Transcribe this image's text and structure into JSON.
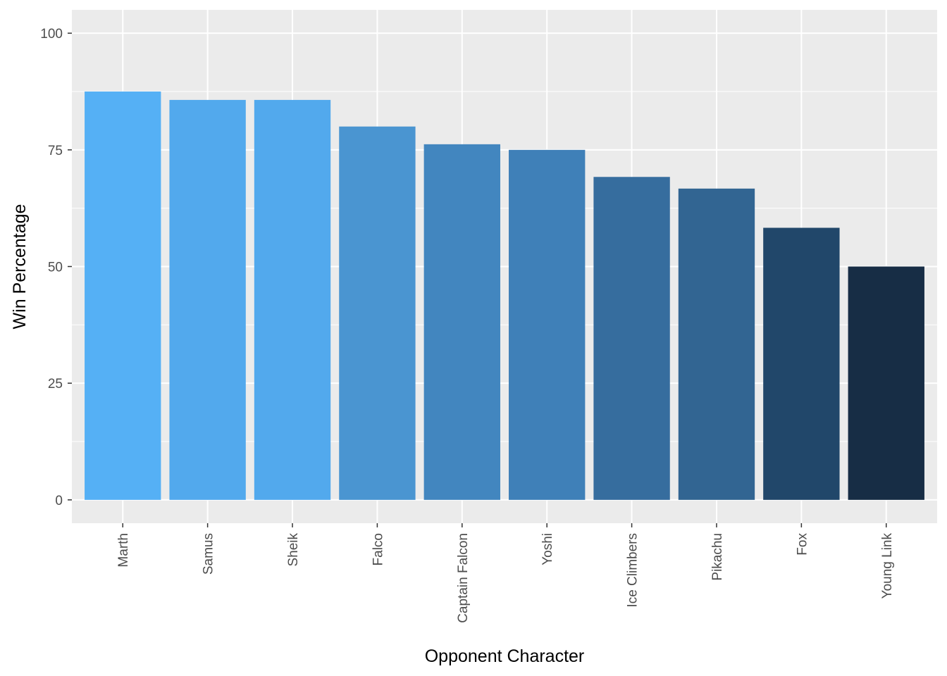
{
  "chart_data": {
    "type": "bar",
    "xlabel": "Opponent Character",
    "ylabel": "Win Percentage",
    "categories": [
      "Marth",
      "Samus",
      "Sheik",
      "Falco",
      "Captain Falcon",
      "Yoshi",
      "Ice Climbers",
      "Pikachu",
      "Fox",
      "Young Link"
    ],
    "values": [
      87.5,
      85.7,
      85.7,
      80.0,
      76.2,
      75.0,
      69.2,
      66.7,
      58.3,
      50.0
    ],
    "ylim": [
      -5,
      105
    ],
    "yticks": [
      0,
      25,
      50,
      75,
      100
    ],
    "ytick_labels": [
      "0",
      "25",
      "50",
      "75",
      "100"
    ],
    "grid": true,
    "legend": "none",
    "colors": {
      "panel_background": "#EBEBEB",
      "gridline": "#FFFFFF",
      "bar_fills": [
        "#55B0F5",
        "#52A9ED",
        "#52A9ED",
        "#4A95D1",
        "#4286BF",
        "#3F80B8",
        "#366D9E",
        "#326592",
        "#21476A",
        "#172D45"
      ]
    }
  }
}
